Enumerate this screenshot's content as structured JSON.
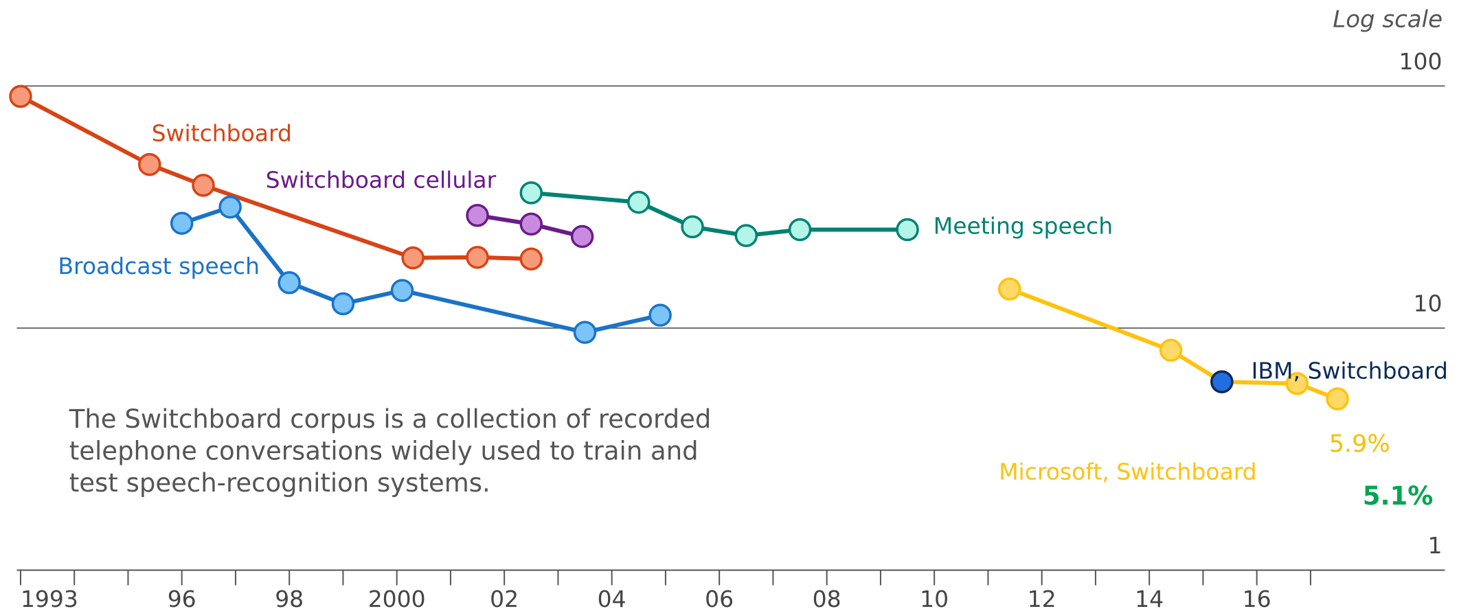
{
  "chart_data": {
    "type": "line",
    "log_scale": true,
    "scale_note": "Log scale",
    "xlim": [
      1992.9,
      2019.5
    ],
    "ylim": [
      1,
      100
    ],
    "yticks": [
      1,
      10,
      100
    ],
    "grid": true,
    "xticks": [
      {
        "value": 1993,
        "label": "1993"
      },
      {
        "value": 1996,
        "label": "96"
      },
      {
        "value": 1998,
        "label": "98"
      },
      {
        "value": 2000,
        "label": "2000"
      },
      {
        "value": 2002,
        "label": "02"
      },
      {
        "value": 2004,
        "label": "04"
      },
      {
        "value": 2006,
        "label": "06"
      },
      {
        "value": 2008,
        "label": "08"
      },
      {
        "value": 2010,
        "label": "10"
      },
      {
        "value": 2012,
        "label": "12"
      },
      {
        "value": 2014,
        "label": "14"
      },
      {
        "value": 2016,
        "label": "16"
      }
    ],
    "xminorticks": [
      1994,
      1995,
      1997,
      1999,
      2001,
      2003,
      2005,
      2007,
      2009,
      2011,
      2013,
      2015,
      2017
    ],
    "annotation": [
      "The Switchboard corpus is a collection of recorded",
      "telephone conversations widely used to train and",
      "test speech-recognition systems."
    ],
    "series": [
      {
        "name": "Switchboard",
        "color": "#d84315",
        "fill": "#f79a7a",
        "x": [
          1993,
          1995.4,
          1996.4,
          2000.3,
          2001.5,
          2002.5
        ],
        "values": [
          90.6,
          47.4,
          38.9,
          19.5,
          19.6,
          19.3
        ]
      },
      {
        "name": "Switchboard cellular",
        "color": "#6a1b8a",
        "fill": "#c98be0",
        "x": [
          2001.5,
          2002.5,
          2003.45
        ],
        "values": [
          29.2,
          26.9,
          23.9
        ]
      },
      {
        "name": "Broadcast speech",
        "color": "#1a73c8",
        "fill": "#7cc4f8",
        "x": [
          1996.0,
          1996.9,
          1998.0,
          1999.0,
          2000.1,
          2003.5,
          2004.9
        ],
        "values": [
          27.1,
          31.6,
          15.4,
          12.6,
          14.3,
          9.6,
          11.3
        ]
      },
      {
        "name": "Meeting speech",
        "color": "#008272",
        "fill": "#b3f5e8",
        "x": [
          2002.5,
          2004.5,
          2005.5,
          2006.5,
          2007.5,
          2009.5
        ],
        "values": [
          36.2,
          33.1,
          26.2,
          24.1,
          25.5,
          25.5
        ]
      },
      {
        "name": "Microsoft, Switchboard",
        "color": "#ffc20e",
        "fill": "#ffd966",
        "x": [
          2011.4,
          2014.4,
          2015.35,
          2016.75,
          2017.5
        ],
        "values": [
          14.5,
          8.1,
          6.0,
          5.9,
          5.1
        ],
        "value_labels": [
          null,
          null,
          null,
          "5.9%",
          "5.1%"
        ]
      },
      {
        "name": "IBM, Switchboard",
        "color": "#0b2a5a",
        "fill": "#1f6fe0",
        "x": [
          2015.35
        ],
        "values": [
          6.0
        ]
      }
    ]
  }
}
